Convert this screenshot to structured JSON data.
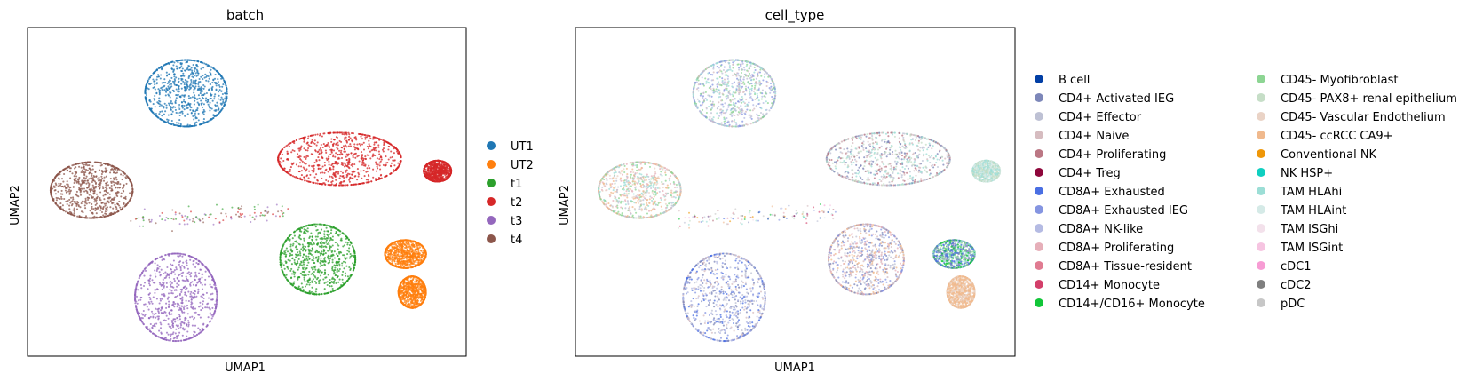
{
  "chart_data": [
    {
      "type": "scatter",
      "title": "batch",
      "xlabel": "UMAP1",
      "ylabel": "UMAP2",
      "grid": false,
      "legend_placement": "right",
      "series": [
        {
          "name": "UT1",
          "color": "#1f77b4"
        },
        {
          "name": "UT2",
          "color": "#ff7f0e"
        },
        {
          "name": "t1",
          "color": "#2ca02c"
        },
        {
          "name": "t2",
          "color": "#d62728"
        },
        {
          "name": "t3",
          "color": "#9467bd"
        },
        {
          "name": "t4",
          "color": "#8c564b"
        }
      ],
      "clusters": [
        {
          "series": "UT1",
          "center": [
            -2.6,
            7.2
          ],
          "spread": [
            2.4,
            1.9
          ]
        },
        {
          "series": "t2",
          "center": [
            6.5,
            3.4
          ],
          "spread": [
            3.6,
            1.5
          ]
        },
        {
          "series": "t2",
          "center": [
            12.3,
            2.7
          ],
          "spread": [
            0.8,
            0.6
          ]
        },
        {
          "series": "t4",
          "center": [
            -8.2,
            1.6
          ],
          "spread": [
            2.4,
            1.6
          ]
        },
        {
          "series": "t1",
          "center": [
            5.2,
            -2.4
          ],
          "spread": [
            2.2,
            2.0
          ]
        },
        {
          "series": "UT2",
          "center": [
            10.4,
            -2.1
          ],
          "spread": [
            1.2,
            0.8
          ]
        },
        {
          "series": "UT2",
          "center": [
            10.8,
            -4.3
          ],
          "spread": [
            0.8,
            0.9
          ]
        },
        {
          "series": "t3",
          "center": [
            -3.2,
            -4.6
          ],
          "spread": [
            2.4,
            2.5
          ]
        }
      ],
      "xlim": [
        -12,
        14
      ],
      "ylim": [
        -8,
        11
      ]
    },
    {
      "type": "scatter",
      "title": "cell_type",
      "xlabel": "UMAP1",
      "ylabel": "UMAP2",
      "grid": false,
      "legend_placement": "right, two columns",
      "series": [
        {
          "name": "B cell",
          "color": "#023fa5"
        },
        {
          "name": "CD4+ Activated IEG",
          "color": "#7d87b9"
        },
        {
          "name": "CD4+ Effector",
          "color": "#bec1d4"
        },
        {
          "name": "CD4+ Naive",
          "color": "#d6bcc0"
        },
        {
          "name": "CD4+ Proliferating",
          "color": "#bb7784"
        },
        {
          "name": "CD4+ Treg",
          "color": "#8e063b"
        },
        {
          "name": "CD8A+ Exhausted",
          "color": "#4a6fe3"
        },
        {
          "name": "CD8A+ Exhausted IEG",
          "color": "#8595e1"
        },
        {
          "name": "CD8A+ NK-like",
          "color": "#b5bbe3"
        },
        {
          "name": "CD8A+ Proliferating",
          "color": "#e6afb9"
        },
        {
          "name": "CD8A+ Tissue-resident",
          "color": "#e07b91"
        },
        {
          "name": "CD14+ Monocyte",
          "color": "#d33f6a"
        },
        {
          "name": "CD14+/CD16+ Monocyte",
          "color": "#11c638"
        },
        {
          "name": "CD45- Myofibroblast",
          "color": "#8dd593"
        },
        {
          "name": "CD45- PAX8+ renal epithelium",
          "color": "#c6dec7"
        },
        {
          "name": "CD45- Vascular Endothelium",
          "color": "#ead3c6"
        },
        {
          "name": "CD45- ccRCC CA9+",
          "color": "#f0b98d"
        },
        {
          "name": "Conventional NK",
          "color": "#ef9708"
        },
        {
          "name": "NK HSP+",
          "color": "#0fcfc0"
        },
        {
          "name": "TAM HLAhi",
          "color": "#9cded6"
        },
        {
          "name": "TAM HLAint",
          "color": "#d5eae7"
        },
        {
          "name": "TAM ISGhi",
          "color": "#f3e1eb"
        },
        {
          "name": "TAM ISGint",
          "color": "#f6c4e1"
        },
        {
          "name": "cDC1",
          "color": "#f79cd4"
        },
        {
          "name": "cDC2",
          "color": "#7f7f7f"
        },
        {
          "name": "pDC",
          "color": "#c7c7c7"
        }
      ],
      "clusters": [
        {
          "center": [
            -2.6,
            7.2
          ],
          "spread": [
            2.4,
            1.9
          ],
          "mix": [
            "#8dd593",
            "#bec1d4",
            "#b5bbe3",
            "#d6bcc0",
            "#9cded6",
            "#8595e1"
          ]
        },
        {
          "center": [
            6.5,
            3.4
          ],
          "spread": [
            3.6,
            1.5
          ],
          "mix": [
            "#9cded6",
            "#bec1d4",
            "#d6bcc0",
            "#7d87b9",
            "#c6dec7",
            "#bb7784"
          ]
        },
        {
          "center": [
            12.3,
            2.7
          ],
          "spread": [
            0.8,
            0.6
          ],
          "mix": [
            "#c6dec7",
            "#d5eae7",
            "#9cded6"
          ]
        },
        {
          "center": [
            -8.2,
            1.6
          ],
          "spread": [
            2.4,
            1.6
          ],
          "mix": [
            "#f0b98d",
            "#ead3c6",
            "#8dd593",
            "#bec1d4",
            "#e6afb9",
            "#9cded6"
          ]
        },
        {
          "center": [
            5.2,
            -2.4
          ],
          "spread": [
            2.2,
            2.0
          ],
          "mix": [
            "#7d87b9",
            "#bec1d4",
            "#d6bcc0",
            "#f0b98d",
            "#8595e1",
            "#e6afb9"
          ]
        },
        {
          "center": [
            10.4,
            -2.1
          ],
          "spread": [
            1.2,
            0.8
          ],
          "mix": [
            "#8dd593",
            "#4a6fe3",
            "#9cded6",
            "#11c638",
            "#7d87b9"
          ]
        },
        {
          "center": [
            10.8,
            -4.3
          ],
          "spread": [
            0.8,
            0.9
          ],
          "mix": [
            "#f0b98d",
            "#ead3c6",
            "#f0b98d"
          ]
        },
        {
          "center": [
            -3.2,
            -4.6
          ],
          "spread": [
            2.4,
            2.5
          ],
          "mix": [
            "#4a6fe3",
            "#8595e1",
            "#7d87b9",
            "#bec1d4",
            "#d6bcc0",
            "#b5bbe3"
          ]
        }
      ],
      "xlim": [
        -12,
        14
      ],
      "ylim": [
        -8,
        11
      ]
    }
  ]
}
